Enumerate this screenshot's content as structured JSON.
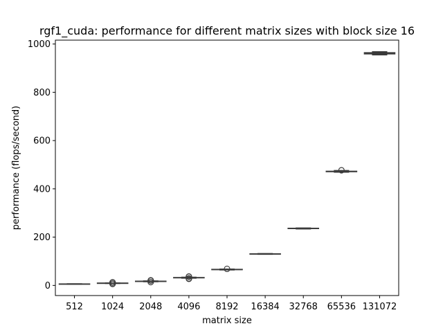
{
  "chart_data": {
    "type": "box",
    "title": "rgf1_cuda: performance for different matrix sizes with block size 16",
    "xlabel": "matrix size",
    "ylabel": "performance (flops/second)",
    "categories": [
      "512",
      "1024",
      "2048",
      "4096",
      "8192",
      "16384",
      "32768",
      "65536",
      "131072"
    ],
    "ylim": [
      -42,
      1016
    ],
    "yticks": [
      0,
      200,
      400,
      600,
      800,
      1000
    ],
    "grid": false,
    "boxes": [
      {
        "category": "512",
        "whisker_low": 5,
        "q1": 5.6,
        "median": 5.9,
        "q3": 6.2,
        "whisker_high": 6.8,
        "outliers": []
      },
      {
        "category": "1024",
        "whisker_low": 8,
        "q1": 8.8,
        "median": 9.2,
        "q3": 9.7,
        "whisker_high": 10.5,
        "outliers": [
          6,
          7,
          12,
          13
        ]
      },
      {
        "category": "2048",
        "whisker_low": 15.5,
        "q1": 16.5,
        "median": 17,
        "q3": 17.6,
        "whisker_high": 18.5,
        "outliers": [
          14,
          20,
          21
        ]
      },
      {
        "category": "4096",
        "whisker_low": 30,
        "q1": 31.4,
        "median": 32,
        "q3": 32.7,
        "whisker_high": 34,
        "outliers": [
          27,
          29,
          36,
          37
        ]
      },
      {
        "category": "8192",
        "whisker_low": 64,
        "q1": 65.5,
        "median": 66,
        "q3": 66.6,
        "whisker_high": 67.5,
        "outliers": [
          68.5
        ]
      },
      {
        "category": "16384",
        "whisker_low": 129,
        "q1": 130,
        "median": 130.5,
        "q3": 131,
        "whisker_high": 132,
        "outliers": []
      },
      {
        "category": "32768",
        "whisker_low": 234,
        "q1": 235.5,
        "median": 236,
        "q3": 236.8,
        "whisker_high": 238,
        "outliers": []
      },
      {
        "category": "65536",
        "whisker_low": 469,
        "q1": 471,
        "median": 472,
        "q3": 473,
        "whisker_high": 476,
        "outliers": [
          477
        ]
      },
      {
        "category": "131072",
        "whisker_low": 955,
        "q1": 959,
        "median": 962,
        "q3": 964,
        "whisker_high": 968,
        "outliers": []
      }
    ]
  }
}
